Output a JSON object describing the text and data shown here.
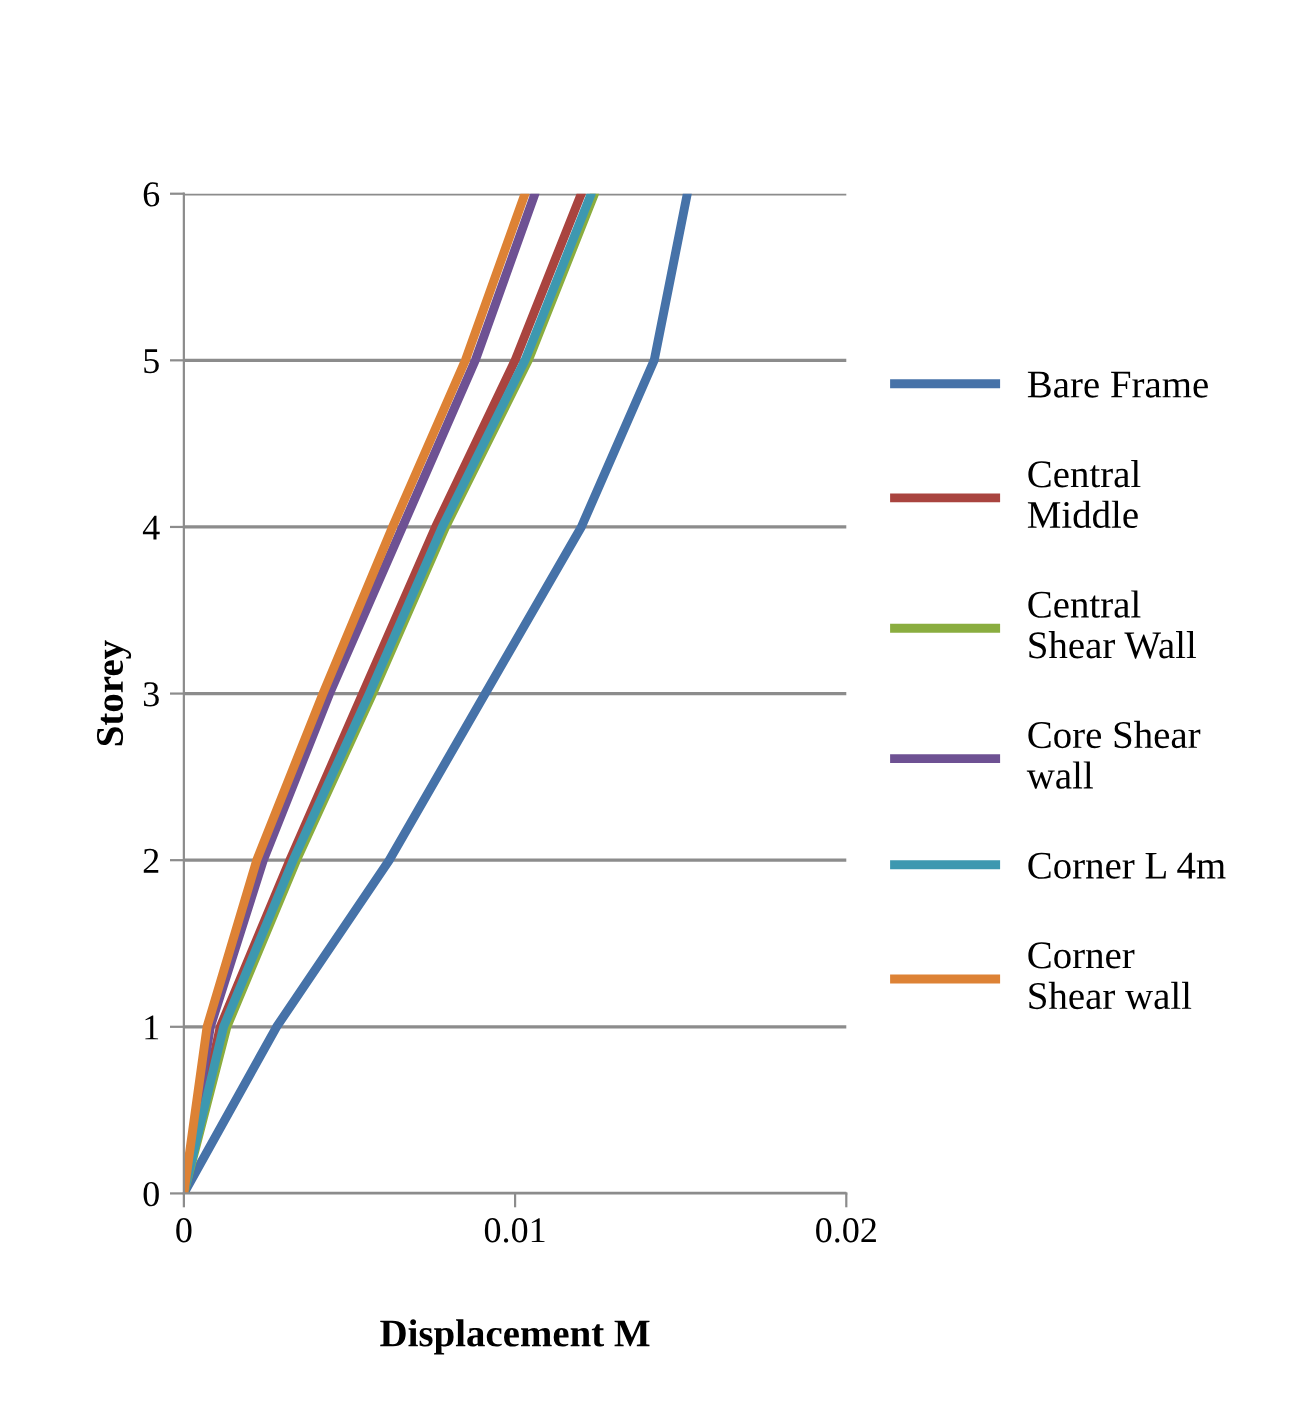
{
  "chart_data": {
    "type": "line",
    "xlabel": "Displacement M",
    "ylabel": "Storey",
    "xlim": [
      0,
      0.02
    ],
    "xticks": [
      0,
      0.01,
      0.02
    ],
    "ylim": [
      0,
      6
    ],
    "yticks": [
      0,
      1,
      2,
      3,
      4,
      5,
      6
    ],
    "grid": "y",
    "legend": "right",
    "marker": "none",
    "line_style": "solid",
    "series": [
      {
        "name": "Bare Frame",
        "color": "#4672a8",
        "x": [
          0,
          0.0028,
          0.0062,
          0.0091,
          0.012,
          0.0142,
          0.0152
        ],
        "values": [
          0,
          1,
          2,
          3,
          4,
          5,
          6
        ]
      },
      {
        "name": "Central Middle",
        "color": "#a9443f",
        "x": [
          0,
          0.0011,
          0.0032,
          0.0054,
          0.0076,
          0.01,
          0.012
        ],
        "values": [
          0,
          1,
          2,
          3,
          4,
          5,
          6
        ]
      },
      {
        "name": "Central Shear Wall",
        "color": "#8aad3f",
        "x": [
          0,
          0.0013,
          0.0034,
          0.0057,
          0.0079,
          0.0104,
          0.0124
        ],
        "values": [
          0,
          1,
          2,
          3,
          4,
          5,
          6
        ]
      },
      {
        "name": "Core Shear wall",
        "color": "#6e5193",
        "x": [
          0,
          0.0008,
          0.0024,
          0.0044,
          0.0066,
          0.0088,
          0.0106
        ],
        "values": [
          0,
          1,
          2,
          3,
          4,
          5,
          6
        ]
      },
      {
        "name": "Corner L 4m",
        "color": "#3d98b0",
        "x": [
          0,
          0.0012,
          0.0033,
          0.0056,
          0.0078,
          0.0103,
          0.0123
        ],
        "values": [
          0,
          1,
          2,
          3,
          4,
          5,
          6
        ]
      },
      {
        "name": "Corner Shear wall",
        "color": "#dd8235",
        "x": [
          0,
          0.0007,
          0.0022,
          0.0042,
          0.0063,
          0.0085,
          0.0103
        ],
        "values": [
          0,
          1,
          2,
          3,
          4,
          5,
          6
        ]
      }
    ]
  }
}
